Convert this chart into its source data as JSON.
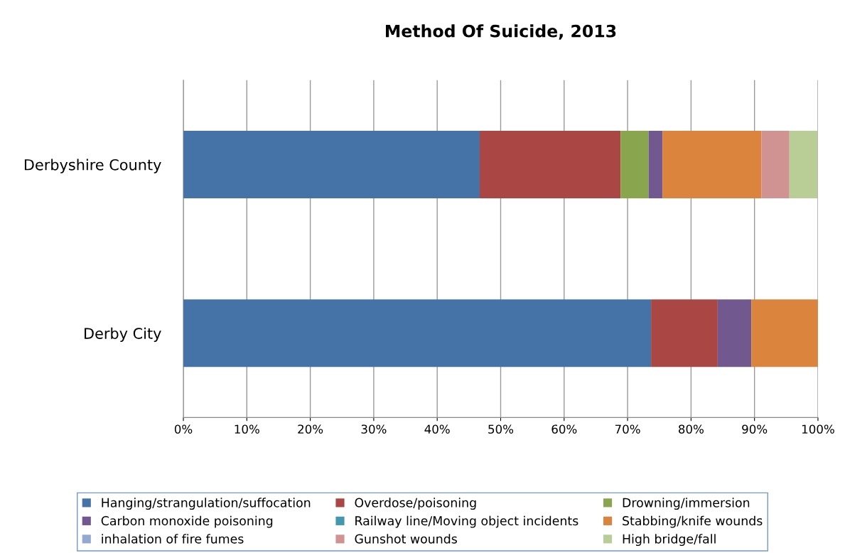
{
  "chart_data": {
    "type": "bar",
    "orientation": "horizontal",
    "stacked": true,
    "title": "Method Of Suicide, 2013",
    "categories": [
      "Derbyshire County",
      "Derby City"
    ],
    "series": [
      {
        "name": "Hanging/strangulation/suffocation",
        "color": "#4572a7",
        "values": [
          46.7,
          73.7
        ]
      },
      {
        "name": "Overdose/poisoning",
        "color": "#aa4643",
        "values": [
          22.2,
          10.5
        ]
      },
      {
        "name": "Drowning/immersion",
        "color": "#89a54e",
        "values": [
          4.4,
          0
        ]
      },
      {
        "name": "Carbon monoxide poisoning",
        "color": "#71588f",
        "values": [
          2.2,
          5.3
        ]
      },
      {
        "name": "Railway line/Moving object incidents",
        "color": "#4198af",
        "values": [
          0,
          0
        ]
      },
      {
        "name": "Stabbing/knife wounds",
        "color": "#db843d",
        "values": [
          15.6,
          10.5
        ]
      },
      {
        "name": "inhalation of fire fumes",
        "color": "#93a9cf",
        "values": [
          0,
          0
        ]
      },
      {
        "name": "Gunshot wounds",
        "color": "#d19392",
        "values": [
          4.4,
          0
        ]
      },
      {
        "name": "High bridge/fall",
        "color": "#b9cd96",
        "values": [
          4.4,
          0
        ]
      }
    ],
    "xlim": [
      0,
      100
    ],
    "xticks": [
      {
        "value": 0,
        "label": "0%"
      },
      {
        "value": 10,
        "label": "10%"
      },
      {
        "value": 20,
        "label": "20%"
      },
      {
        "value": 30,
        "label": "30%"
      },
      {
        "value": 40,
        "label": "40%"
      },
      {
        "value": 50,
        "label": "50%"
      },
      {
        "value": 60,
        "label": "60%"
      },
      {
        "value": 70,
        "label": "70%"
      },
      {
        "value": 80,
        "label": "80%"
      },
      {
        "value": 90,
        "label": "90%"
      },
      {
        "value": 100,
        "label": "100%"
      }
    ],
    "grid": "x",
    "legend": "bottom"
  }
}
